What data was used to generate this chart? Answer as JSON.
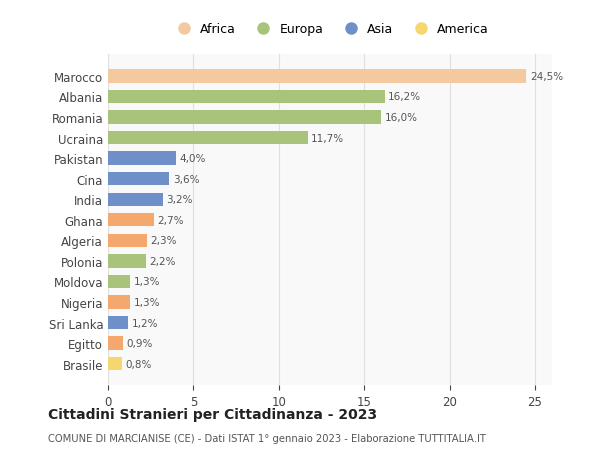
{
  "categories": [
    "Brasile",
    "Egitto",
    "Sri Lanka",
    "Nigeria",
    "Moldova",
    "Polonia",
    "Algeria",
    "Ghana",
    "India",
    "Cina",
    "Pakistan",
    "Ucraina",
    "Romania",
    "Albania",
    "Marocco"
  ],
  "values": [
    0.8,
    0.9,
    1.2,
    1.3,
    1.3,
    2.2,
    2.3,
    2.7,
    3.2,
    3.6,
    4.0,
    11.7,
    16.0,
    16.2,
    24.5
  ],
  "colors": [
    "#f5d76e",
    "#f5a86e",
    "#6e8fc7",
    "#f5a86e",
    "#a8c47a",
    "#a8c47a",
    "#f5a86e",
    "#f5a86e",
    "#6e8fc7",
    "#6e8fc7",
    "#6e8fc7",
    "#a8c47a",
    "#a8c47a",
    "#a8c47a",
    "#f5c9a0"
  ],
  "legend_entries": [
    {
      "label": "Africa",
      "color": "#f5c9a0"
    },
    {
      "label": "Europa",
      "color": "#a8c47a"
    },
    {
      "label": "Asia",
      "color": "#6e8fc7"
    },
    {
      "label": "America",
      "color": "#f5d76e"
    }
  ],
  "title": "Cittadini Stranieri per Cittadinanza - 2023",
  "subtitle": "COMUNE DI MARCIANISE (CE) - Dati ISTAT 1° gennaio 2023 - Elaborazione TUTTITALIA.IT",
  "xlim": [
    0,
    26
  ],
  "xticks": [
    0,
    5,
    10,
    15,
    20,
    25
  ],
  "bg_color": "#ffffff",
  "plot_bg_color": "#f9f9f9",
  "grid_color": "#e0e0e0",
  "label_format": [
    "0,8%",
    "0,9%",
    "1,2%",
    "1,3%",
    "1,3%",
    "2,2%",
    "2,3%",
    "2,7%",
    "3,2%",
    "3,6%",
    "4,0%",
    "11,7%",
    "16,0%",
    "16,2%",
    "24,5%"
  ]
}
